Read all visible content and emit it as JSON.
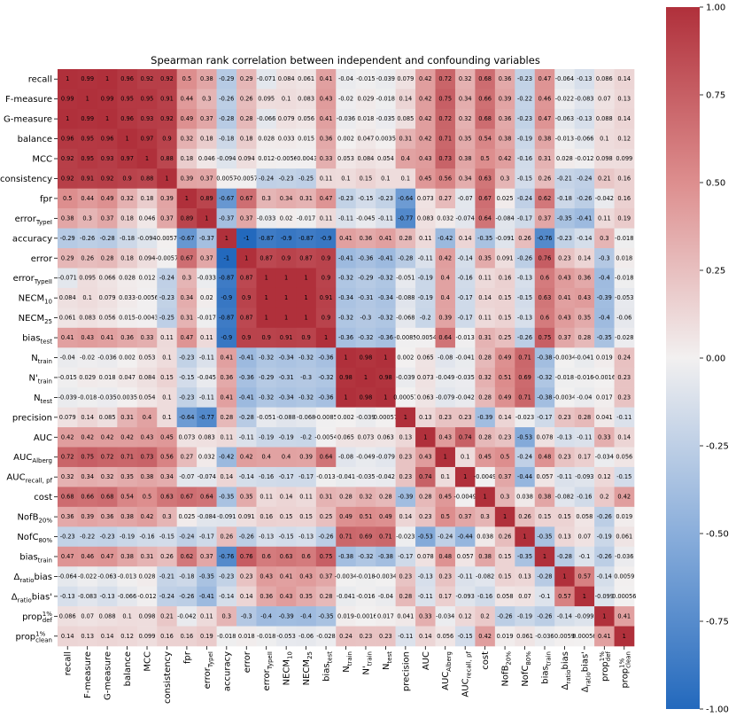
{
  "chart_data": {
    "type": "heatmap",
    "title": "Spearman rank correlation between independent and confounding variables",
    "labels": [
      "recall",
      "F-measure",
      "G-measure",
      "balance",
      "MCC",
      "consistency",
      "fpr",
      {
        "text": "error",
        "sub": "TypeI"
      },
      "accuracy",
      "error",
      {
        "text": "error",
        "sub": "TypeII"
      },
      {
        "text": "NECM",
        "sub": "10"
      },
      {
        "text": "NECM",
        "sub": "25"
      },
      {
        "text": "bias",
        "sub": "test"
      },
      {
        "text": "N",
        "sub": "train"
      },
      {
        "text": "N'",
        "sub": "train"
      },
      {
        "text": "N",
        "sub": "test"
      },
      "precision",
      "AUC",
      {
        "text": "AUC",
        "sub": "Alberg"
      },
      {
        "text": "AUC",
        "sub": "recall, pf"
      },
      "cost",
      {
        "text": "NofB",
        "sub": "20%"
      },
      {
        "text": "NofC",
        "sub": "80%"
      },
      {
        "text": "bias",
        "sub": "train"
      },
      {
        "text": "Δ",
        "sub": "ratio",
        "after": "bias"
      },
      {
        "text": "Δ",
        "sub": "ratio",
        "after": "bias'"
      },
      {
        "text": "prop",
        "sup": "1%",
        "sub": "def"
      },
      {
        "text": "prop",
        "sup": "1%",
        "sub": "clean"
      }
    ],
    "values": [
      [
        1,
        0.99,
        1,
        0.96,
        0.92,
        0.92,
        0.5,
        0.38,
        -0.29,
        0.29,
        -0.071,
        0.084,
        0.061,
        0.41,
        -0.04,
        -0.015,
        -0.039,
        0.079,
        0.42,
        0.72,
        0.32,
        0.68,
        0.36,
        -0.23,
        0.47,
        -0.064,
        -0.13,
        0.086,
        0.14
      ],
      [
        0.99,
        1,
        0.99,
        0.95,
        0.95,
        0.91,
        0.44,
        0.3,
        -0.26,
        0.26,
        0.095,
        0.1,
        0.083,
        0.43,
        -0.02,
        0.029,
        -0.018,
        0.14,
        0.42,
        0.75,
        0.34,
        0.66,
        0.39,
        -0.22,
        0.46,
        -0.022,
        -0.083,
        0.07,
        0.13
      ],
      [
        1,
        0.99,
        1,
        0.96,
        0.93,
        0.92,
        0.49,
        0.37,
        -0.28,
        0.28,
        -0.066,
        0.079,
        0.056,
        0.41,
        -0.036,
        0.018,
        -0.035,
        0.085,
        0.42,
        0.72,
        0.32,
        0.68,
        0.36,
        -0.23,
        0.47,
        -0.063,
        -0.13,
        0.088,
        0.14
      ],
      [
        0.96,
        0.95,
        0.96,
        1,
        0.97,
        0.9,
        0.32,
        0.18,
        -0.18,
        0.18,
        0.028,
        0.033,
        0.015,
        0.36,
        0.002,
        0.047,
        0.0035,
        0.31,
        0.42,
        0.71,
        0.35,
        0.54,
        0.38,
        -0.19,
        0.38,
        -0.013,
        -0.066,
        0.1,
        0.12
      ],
      [
        0.92,
        0.95,
        0.93,
        0.97,
        1,
        0.88,
        0.18,
        0.046,
        -0.094,
        0.094,
        0.012,
        -0.0056,
        -0.0043,
        0.33,
        0.053,
        0.084,
        0.054,
        0.4,
        0.43,
        0.73,
        0.38,
        0.5,
        0.42,
        -0.16,
        0.31,
        0.028,
        -0.012,
        0.098,
        0.099
      ],
      [
        0.92,
        0.91,
        0.92,
        0.9,
        0.88,
        1,
        0.39,
        0.37,
        0.0057,
        -0.0057,
        -0.24,
        -0.23,
        -0.25,
        0.11,
        0.1,
        0.15,
        0.1,
        0.1,
        0.45,
        0.56,
        0.34,
        0.63,
        0.3,
        -0.15,
        0.26,
        -0.21,
        -0.24,
        0.21,
        0.16
      ],
      [
        0.5,
        0.44,
        0.49,
        0.32,
        0.18,
        0.39,
        1,
        0.89,
        -0.67,
        0.67,
        0.3,
        0.34,
        0.31,
        0.47,
        -0.23,
        -0.15,
        -0.23,
        -0.64,
        0.073,
        0.27,
        -0.07,
        0.67,
        0.025,
        -0.24,
        0.62,
        -0.18,
        -0.26,
        -0.042,
        0.16
      ],
      [
        0.38,
        0.3,
        0.37,
        0.18,
        0.046,
        0.37,
        0.89,
        1,
        -0.37,
        0.37,
        -0.033,
        0.02,
        -0.017,
        0.11,
        -0.11,
        -0.045,
        -0.11,
        -0.77,
        0.083,
        0.032,
        -0.074,
        0.64,
        -0.084,
        -0.17,
        0.37,
        -0.35,
        -0.41,
        0.11,
        0.19
      ],
      [
        -0.29,
        -0.26,
        -0.28,
        -0.18,
        -0.094,
        0.0057,
        -0.67,
        -0.37,
        1,
        -1,
        -0.87,
        -0.9,
        -0.87,
        -0.9,
        0.41,
        0.36,
        0.41,
        0.28,
        0.11,
        -0.42,
        0.14,
        -0.35,
        -0.091,
        0.26,
        -0.76,
        -0.23,
        -0.14,
        0.3,
        -0.018
      ],
      [
        0.29,
        0.26,
        0.28,
        0.18,
        0.094,
        -0.0057,
        0.67,
        0.37,
        -1,
        1,
        0.87,
        0.9,
        0.87,
        0.9,
        -0.41,
        -0.36,
        -0.41,
        -0.28,
        -0.11,
        0.42,
        -0.14,
        0.35,
        0.091,
        -0.26,
        0.76,
        0.23,
        0.14,
        -0.3,
        0.018
      ],
      [
        -0.071,
        0.095,
        0.066,
        0.028,
        0.012,
        -0.24,
        0.3,
        -0.033,
        -0.87,
        0.87,
        1,
        1,
        1,
        0.9,
        -0.32,
        -0.29,
        -0.32,
        -0.051,
        -0.19,
        0.4,
        -0.16,
        0.11,
        0.16,
        -0.13,
        0.6,
        0.43,
        0.36,
        -0.4,
        -0.018
      ],
      [
        0.084,
        0.1,
        0.079,
        0.033,
        -0.0056,
        -0.23,
        0.34,
        0.02,
        -0.9,
        0.9,
        1,
        1,
        1,
        0.91,
        -0.34,
        -0.31,
        -0.34,
        -0.088,
        -0.19,
        0.4,
        -0.17,
        0.14,
        0.15,
        -0.15,
        0.63,
        0.41,
        0.43,
        -0.39,
        -0.053
      ],
      [
        0.061,
        0.083,
        0.056,
        0.015,
        -0.0043,
        -0.25,
        0.31,
        -0.017,
        -0.87,
        0.87,
        1,
        1,
        1,
        0.9,
        -0.32,
        -0.3,
        -0.32,
        -0.068,
        -0.2,
        0.39,
        -0.17,
        0.11,
        0.15,
        -0.13,
        0.6,
        0.43,
        0.35,
        -0.4,
        -0.06
      ],
      [
        0.41,
        0.43,
        0.41,
        0.36,
        0.33,
        0.11,
        0.47,
        0.11,
        -0.9,
        0.9,
        0.9,
        0.91,
        0.9,
        1,
        -0.36,
        -0.32,
        -0.36,
        -0.0085,
        -0.0054,
        0.64,
        -0.013,
        0.31,
        0.25,
        -0.26,
        0.75,
        0.37,
        0.28,
        -0.35,
        -0.028
      ],
      [
        -0.04,
        -0.02,
        -0.036,
        0.002,
        0.053,
        0.1,
        -0.23,
        -0.11,
        0.41,
        -0.41,
        -0.32,
        -0.34,
        -0.32,
        -0.36,
        1,
        0.98,
        1,
        0.002,
        0.065,
        -0.08,
        -0.041,
        0.28,
        0.49,
        0.71,
        -0.38,
        -0.0034,
        -0.041,
        0.019,
        0.24
      ],
      [
        -0.015,
        0.029,
        0.018,
        0.047,
        0.084,
        0.15,
        -0.15,
        -0.045,
        0.36,
        -0.36,
        -0.29,
        -0.31,
        -0.3,
        -0.32,
        0.98,
        1,
        0.98,
        -0.039,
        0.073,
        -0.049,
        -0.035,
        0.32,
        0.51,
        0.69,
        -0.32,
        -0.018,
        -0.016,
        -0.0016,
        0.23
      ],
      [
        -0.039,
        -0.018,
        -0.035,
        0.0035,
        0.054,
        0.1,
        -0.23,
        -0.11,
        0.41,
        -0.41,
        -0.32,
        -0.34,
        -0.32,
        -0.36,
        1,
        0.98,
        1,
        0.00057,
        0.063,
        -0.079,
        -0.042,
        0.28,
        0.49,
        0.71,
        -0.38,
        -0.0034,
        -0.04,
        0.017,
        0.23
      ],
      [
        0.079,
        0.14,
        0.085,
        0.31,
        0.4,
        0.1,
        -0.64,
        -0.77,
        0.28,
        -0.28,
        -0.051,
        -0.088,
        -0.068,
        -0.0085,
        0.002,
        -0.039,
        0.00057,
        1,
        0.13,
        0.23,
        0.23,
        -0.39,
        0.14,
        -0.023,
        -0.17,
        0.23,
        0.28,
        0.041,
        -0.11
      ],
      [
        0.42,
        0.42,
        0.42,
        0.42,
        0.43,
        0.45,
        0.073,
        0.083,
        0.11,
        -0.11,
        -0.19,
        -0.19,
        -0.2,
        -0.0054,
        0.065,
        0.073,
        0.063,
        0.13,
        1,
        0.43,
        0.74,
        0.28,
        0.23,
        -0.53,
        0.078,
        -0.13,
        -0.11,
        0.33,
        0.14
      ],
      [
        0.72,
        0.75,
        0.72,
        0.71,
        0.73,
        0.56,
        0.27,
        0.032,
        -0.42,
        0.42,
        0.4,
        0.4,
        0.39,
        0.64,
        -0.08,
        -0.049,
        -0.079,
        0.23,
        0.43,
        1,
        0.1,
        0.45,
        0.5,
        -0.24,
        0.48,
        0.23,
        0.17,
        -0.034,
        0.056
      ],
      [
        0.32,
        0.34,
        0.32,
        0.35,
        0.38,
        0.34,
        -0.07,
        -0.074,
        0.14,
        -0.14,
        -0.16,
        -0.17,
        -0.17,
        -0.013,
        -0.041,
        -0.035,
        -0.042,
        0.23,
        0.74,
        0.1,
        1,
        -0.0049,
        0.37,
        -0.44,
        0.057,
        -0.11,
        -0.093,
        0.12,
        -0.15
      ],
      [
        0.68,
        0.66,
        0.68,
        0.54,
        0.5,
        0.63,
        0.67,
        0.64,
        -0.35,
        0.35,
        0.11,
        0.14,
        0.11,
        0.31,
        0.28,
        0.32,
        0.28,
        -0.39,
        0.28,
        0.45,
        -0.0049,
        1,
        0.3,
        0.038,
        0.38,
        -0.082,
        -0.16,
        0.2,
        0.42
      ],
      [
        0.36,
        0.39,
        0.36,
        0.38,
        0.42,
        0.3,
        0.025,
        -0.084,
        -0.091,
        0.091,
        0.16,
        0.15,
        0.15,
        0.25,
        0.49,
        0.51,
        0.49,
        0.14,
        0.23,
        0.5,
        0.37,
        0.3,
        1,
        0.26,
        0.15,
        0.15,
        0.058,
        -0.26,
        0.019
      ],
      [
        -0.23,
        -0.22,
        -0.23,
        -0.19,
        -0.16,
        -0.15,
        -0.24,
        -0.17,
        0.26,
        -0.26,
        -0.13,
        -0.15,
        -0.13,
        -0.26,
        0.71,
        0.69,
        0.71,
        -0.023,
        -0.53,
        -0.24,
        -0.44,
        0.038,
        0.26,
        1,
        -0.35,
        0.13,
        0.07,
        -0.19,
        0.061
      ],
      [
        0.47,
        0.46,
        0.47,
        0.38,
        0.31,
        0.26,
        0.62,
        0.37,
        -0.76,
        0.76,
        0.6,
        0.63,
        0.6,
        0.75,
        -0.38,
        -0.32,
        -0.38,
        -0.17,
        0.078,
        0.48,
        0.057,
        0.38,
        0.15,
        -0.35,
        1,
        -0.28,
        -0.1,
        -0.26,
        -0.036
      ],
      [
        -0.064,
        -0.022,
        -0.063,
        -0.013,
        0.028,
        -0.21,
        -0.18,
        -0.35,
        -0.23,
        0.23,
        0.43,
        0.41,
        0.43,
        0.37,
        -0.0034,
        -0.018,
        -0.0034,
        0.23,
        -0.13,
        0.23,
        -0.11,
        -0.082,
        0.15,
        0.13,
        -0.28,
        1,
        0.57,
        -0.14,
        0.0059
      ],
      [
        -0.13,
        -0.083,
        -0.13,
        -0.066,
        -0.012,
        -0.24,
        -0.26,
        -0.41,
        -0.14,
        0.14,
        0.36,
        0.43,
        0.35,
        0.28,
        -0.041,
        -0.016,
        -0.04,
        0.28,
        -0.11,
        0.17,
        -0.093,
        -0.16,
        0.058,
        0.07,
        -0.1,
        0.57,
        1,
        -0.099,
        0.00056
      ],
      [
        0.086,
        0.07,
        0.088,
        0.1,
        0.098,
        0.21,
        -0.042,
        0.11,
        0.3,
        -0.3,
        -0.4,
        -0.39,
        -0.4,
        -0.35,
        0.019,
        -0.0016,
        0.017,
        0.041,
        0.33,
        -0.034,
        0.12,
        0.2,
        -0.26,
        -0.19,
        -0.26,
        -0.14,
        -0.099,
        1,
        0.41
      ],
      [
        0.14,
        0.13,
        0.14,
        0.12,
        0.099,
        0.16,
        0.16,
        0.19,
        -0.018,
        0.018,
        -0.018,
        -0.053,
        -0.06,
        -0.028,
        0.24,
        0.23,
        0.23,
        -0.11,
        0.14,
        0.056,
        -0.15,
        0.42,
        0.019,
        0.061,
        -0.036,
        0.0059,
        0.00056,
        0.41,
        1
      ]
    ],
    "clim": [
      -1,
      1
    ],
    "colors": [
      "#2369bd",
      "#8aaedb",
      "#f2f0f0",
      "#dd8e8e",
      "#b0303b"
    ],
    "colorbar_ticks": [
      {
        "value": -1,
        "label": "-1.00"
      },
      {
        "value": -0.75,
        "label": "-0.75"
      },
      {
        "value": -0.5,
        "label": "-0.50"
      },
      {
        "value": -0.25,
        "label": "-0.25"
      },
      {
        "value": 0,
        "label": "0.00"
      },
      {
        "value": 0.25,
        "label": "0.25"
      },
      {
        "value": 0.5,
        "label": "0.50"
      },
      {
        "value": 0.75,
        "label": "0.75"
      },
      {
        "value": 1,
        "label": "1.00"
      }
    ]
  }
}
